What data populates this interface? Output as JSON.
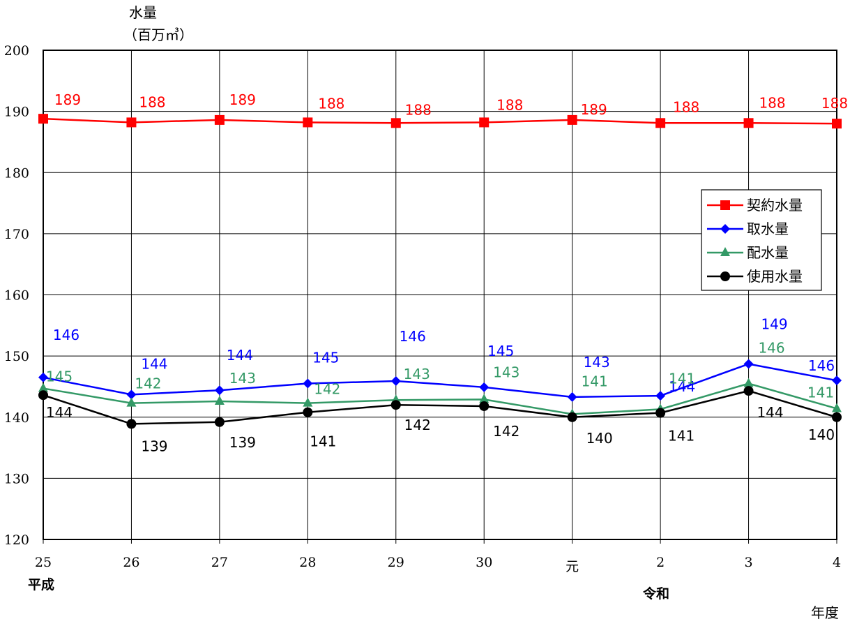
{
  "chart_data": {
    "type": "line",
    "ylabel_line1": "水量",
    "ylabel_line2": "（百万㎥）",
    "xlabel": "年度",
    "era_labels": [
      "平成",
      "令和"
    ],
    "categories": [
      "25",
      "26",
      "27",
      "28",
      "29",
      "30",
      "元",
      "2",
      "3",
      "4"
    ],
    "ylim": [
      120,
      200
    ],
    "yticks": [
      120,
      130,
      140,
      150,
      160,
      170,
      180,
      190,
      200
    ],
    "grid": true,
    "legend_position": "right",
    "series": [
      {
        "name": "契約水量",
        "color": "#ff0000",
        "marker": "square",
        "values": [
          188.8,
          188.2,
          188.6,
          188.2,
          188.1,
          188.2,
          188.6,
          188.1,
          188.1,
          188.0
        ],
        "labels": [
          "189",
          "188",
          "189",
          "188",
          "188",
          "188",
          "189",
          "188",
          "188",
          "188"
        ]
      },
      {
        "name": "取水量",
        "color": "#0000ff",
        "marker": "diamond",
        "values": [
          146.5,
          143.7,
          144.4,
          145.5,
          145.9,
          144.9,
          143.3,
          143.5,
          148.7,
          146.0
        ],
        "labels": [
          "146",
          "144",
          "144",
          "145",
          "146",
          "145",
          "143",
          "144",
          "149",
          "146"
        ]
      },
      {
        "name": "配水量",
        "color": "#339966",
        "marker": "triangle",
        "values": [
          144.7,
          142.3,
          142.6,
          142.3,
          142.8,
          142.9,
          140.5,
          141.3,
          145.5,
          141.4
        ],
        "labels": [
          "145",
          "142",
          "143",
          "142",
          "143",
          "143",
          "141",
          "141",
          "146",
          "141"
        ]
      },
      {
        "name": "使用水量",
        "color": "#000000",
        "marker": "circle",
        "values": [
          143.6,
          138.9,
          139.2,
          140.8,
          142.0,
          141.8,
          140.0,
          140.7,
          144.3,
          140.0
        ],
        "labels": [
          "144",
          "139",
          "139",
          "141",
          "142",
          "142",
          "140",
          "141",
          "144",
          "140"
        ]
      }
    ]
  }
}
